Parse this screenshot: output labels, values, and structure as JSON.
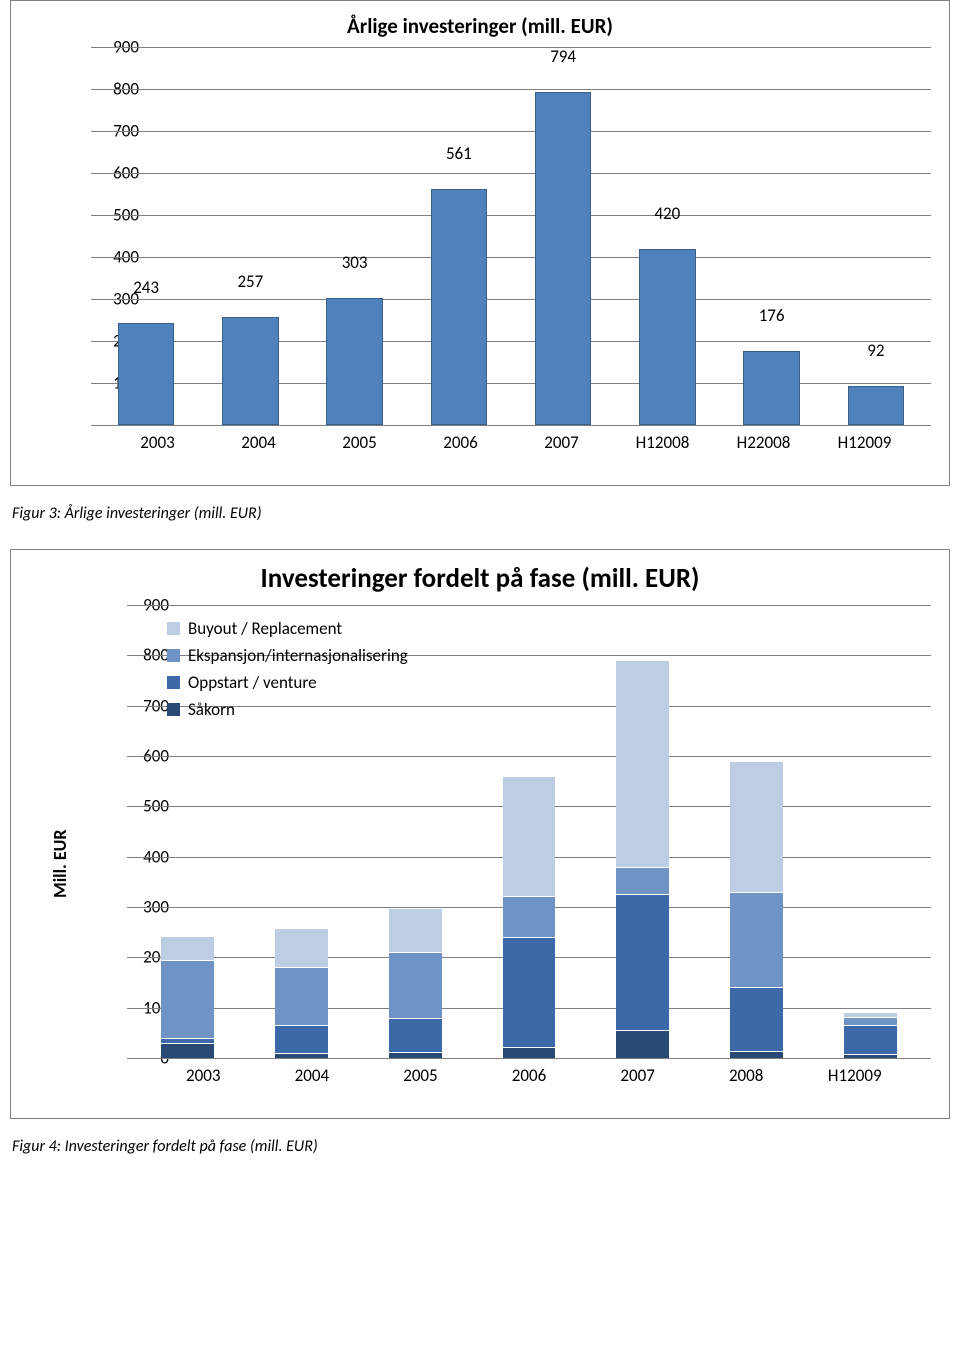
{
  "chart1": {
    "type": "bar",
    "title": "Årlige investeringer (mill. EUR)",
    "title_fontsize": 21,
    "categories": [
      "2003",
      "2004",
      "2005",
      "2006",
      "2007",
      "H12008",
      "H22008",
      "H12009"
    ],
    "values": [
      243,
      257,
      303,
      561,
      794,
      420,
      176,
      92
    ],
    "bar_color": "#4f81bd",
    "bar_border_color": "#3a5f8a",
    "ylim": [
      0,
      900
    ],
    "ytick_step": 100,
    "yticks": [
      0,
      100,
      200,
      300,
      400,
      500,
      600,
      700,
      800,
      900
    ],
    "ytick_labels": [
      "-",
      "100",
      "200",
      "300",
      "400",
      "500",
      "600",
      "700",
      "800",
      "900"
    ],
    "grid_color": "#808080",
    "baseline_color": "#808080",
    "background_color": "#ffffff",
    "tick_fontsize": 17,
    "value_label_fontsize": 17,
    "bar_width": 0.72
  },
  "caption1": "Figur 3: Årlige investeringer (mill. EUR)",
  "chart2": {
    "type": "bar-stacked",
    "title": "Investeringer fordelt på fase (mill. EUR)",
    "title_fontsize": 27,
    "y_axis_title": "Mill. EUR",
    "y_axis_title_fontsize": 18,
    "categories": [
      "2003",
      "2004",
      "2005",
      "2006",
      "2007",
      "2008",
      "H12009"
    ],
    "series": [
      {
        "name": "Såkorn",
        "color": "#2a4a76",
        "values": [
          30,
          10,
          12,
          22,
          55,
          14,
          8
        ]
      },
      {
        "name": "Oppstart / venture",
        "color": "#3c6aa8",
        "values": [
          10,
          55,
          68,
          218,
          270,
          128,
          58
        ]
      },
      {
        "name": "Ekspansjon/internasjonalisering",
        "color": "#6e93c4",
        "values": [
          155,
          115,
          130,
          82,
          55,
          188,
          15
        ]
      },
      {
        "name": "Buyout / Replacement",
        "color": "#bdcde4",
        "values": [
          48,
          78,
          88,
          238,
          410,
          260,
          10
        ]
      }
    ],
    "legend_order": [
      "Buyout / Replacement",
      "Ekspansjon/internasjonalisering",
      "Oppstart / venture",
      "Såkorn"
    ],
    "ylim": [
      0,
      900
    ],
    "ytick_step": 100,
    "yticks": [
      0,
      100,
      200,
      300,
      400,
      500,
      600,
      700,
      800,
      900
    ],
    "grid_color": "#808080",
    "baseline_color": "#808080",
    "background_color": "#ffffff",
    "tick_fontsize": 17,
    "legend_fontsize": 17,
    "bar_width": 0.68,
    "bar_border_color": "#ffffff"
  },
  "caption2": "Figur 4: Investeringer fordelt på fase (mill. EUR)"
}
